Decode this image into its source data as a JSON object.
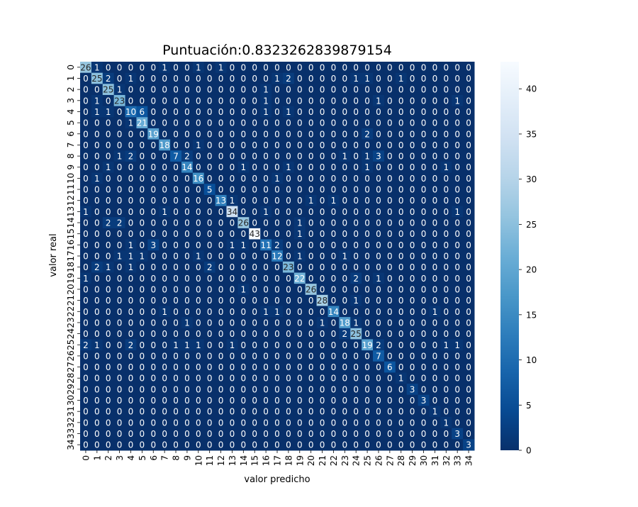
{
  "chart_data": {
    "type": "heatmap",
    "title": "Puntuación:0.8323262839879154",
    "xlabel": "valor predicho",
    "ylabel": "valor real",
    "labels": [
      "0",
      "1",
      "2",
      "3",
      "4",
      "5",
      "6",
      "7",
      "8",
      "9",
      "10",
      "11",
      "12",
      "13",
      "14",
      "15",
      "16",
      "17",
      "18",
      "19",
      "20",
      "21",
      "22",
      "23",
      "24",
      "25",
      "26",
      "27",
      "28",
      "29",
      "30",
      "31",
      "32",
      "33",
      "34"
    ],
    "matrix": [
      [
        26,
        1,
        0,
        0,
        0,
        0,
        0,
        1,
        0,
        0,
        1,
        0,
        1,
        0,
        0,
        0,
        0,
        0,
        0,
        0,
        0,
        0,
        0,
        0,
        0,
        0,
        0,
        0,
        0,
        0,
        0,
        0,
        0,
        0,
        0
      ],
      [
        0,
        25,
        2,
        0,
        1,
        0,
        0,
        0,
        0,
        0,
        0,
        0,
        0,
        0,
        0,
        0,
        0,
        1,
        2,
        0,
        0,
        0,
        0,
        0,
        1,
        1,
        0,
        0,
        1,
        0,
        0,
        0,
        0,
        0,
        0
      ],
      [
        0,
        0,
        25,
        1,
        0,
        0,
        0,
        0,
        0,
        0,
        0,
        0,
        0,
        0,
        0,
        0,
        1,
        0,
        0,
        0,
        0,
        0,
        0,
        0,
        0,
        0,
        0,
        0,
        0,
        0,
        0,
        0,
        0,
        0,
        0
      ],
      [
        0,
        1,
        0,
        23,
        0,
        0,
        0,
        0,
        0,
        0,
        0,
        0,
        0,
        0,
        0,
        0,
        1,
        0,
        0,
        0,
        0,
        0,
        0,
        0,
        0,
        0,
        1,
        0,
        0,
        0,
        0,
        0,
        0,
        1,
        0
      ],
      [
        0,
        1,
        1,
        0,
        10,
        6,
        0,
        0,
        0,
        0,
        0,
        0,
        0,
        0,
        0,
        0,
        1,
        0,
        1,
        0,
        0,
        0,
        0,
        0,
        0,
        0,
        0,
        0,
        0,
        0,
        0,
        0,
        0,
        0,
        0
      ],
      [
        0,
        0,
        0,
        0,
        1,
        21,
        0,
        0,
        0,
        0,
        0,
        0,
        0,
        0,
        0,
        0,
        0,
        0,
        0,
        0,
        0,
        0,
        0,
        0,
        0,
        0,
        0,
        0,
        0,
        0,
        0,
        0,
        0,
        0,
        0
      ],
      [
        0,
        0,
        0,
        0,
        0,
        0,
        19,
        0,
        0,
        0,
        0,
        0,
        0,
        0,
        0,
        0,
        0,
        0,
        0,
        0,
        0,
        0,
        0,
        0,
        0,
        2,
        0,
        0,
        0,
        0,
        0,
        0,
        0,
        0,
        0
      ],
      [
        0,
        0,
        0,
        0,
        0,
        0,
        0,
        18,
        0,
        0,
        1,
        0,
        0,
        0,
        0,
        0,
        0,
        0,
        0,
        0,
        0,
        0,
        0,
        0,
        0,
        0,
        0,
        0,
        0,
        0,
        0,
        0,
        0,
        0,
        0
      ],
      [
        0,
        0,
        0,
        1,
        2,
        0,
        0,
        0,
        7,
        2,
        0,
        0,
        0,
        0,
        0,
        0,
        0,
        0,
        0,
        0,
        0,
        0,
        0,
        1,
        0,
        1,
        3,
        0,
        0,
        0,
        0,
        0,
        0,
        0,
        0
      ],
      [
        0,
        0,
        1,
        0,
        0,
        0,
        0,
        0,
        0,
        14,
        0,
        0,
        0,
        0,
        1,
        0,
        0,
        0,
        1,
        0,
        0,
        0,
        0,
        0,
        0,
        1,
        0,
        0,
        0,
        0,
        0,
        0,
        1,
        0,
        0
      ],
      [
        0,
        1,
        0,
        0,
        0,
        0,
        0,
        0,
        0,
        0,
        16,
        0,
        0,
        0,
        0,
        0,
        0,
        1,
        0,
        0,
        0,
        0,
        0,
        0,
        0,
        0,
        0,
        0,
        0,
        0,
        0,
        0,
        0,
        0,
        0
      ],
      [
        0,
        0,
        0,
        0,
        0,
        0,
        0,
        0,
        0,
        0,
        0,
        5,
        0,
        0,
        0,
        0,
        0,
        0,
        0,
        0,
        0,
        0,
        0,
        0,
        0,
        0,
        0,
        0,
        0,
        0,
        0,
        0,
        0,
        0,
        0
      ],
      [
        0,
        0,
        0,
        0,
        0,
        0,
        0,
        0,
        0,
        0,
        0,
        0,
        13,
        1,
        0,
        0,
        0,
        0,
        0,
        0,
        1,
        0,
        1,
        0,
        0,
        0,
        0,
        0,
        0,
        0,
        0,
        0,
        0,
        0,
        0
      ],
      [
        1,
        0,
        0,
        0,
        0,
        0,
        0,
        1,
        0,
        0,
        0,
        0,
        0,
        34,
        0,
        0,
        1,
        0,
        0,
        0,
        0,
        0,
        0,
        0,
        0,
        0,
        0,
        0,
        0,
        0,
        0,
        0,
        0,
        1,
        0
      ],
      [
        0,
        0,
        2,
        2,
        0,
        0,
        0,
        0,
        0,
        0,
        0,
        0,
        0,
        0,
        26,
        0,
        0,
        0,
        0,
        1,
        0,
        0,
        0,
        0,
        0,
        0,
        0,
        0,
        0,
        0,
        0,
        0,
        0,
        0,
        0
      ],
      [
        0,
        0,
        0,
        0,
        0,
        0,
        0,
        0,
        0,
        0,
        0,
        0,
        0,
        0,
        0,
        43,
        0,
        0,
        0,
        1,
        0,
        0,
        0,
        0,
        0,
        0,
        0,
        0,
        0,
        0,
        0,
        0,
        0,
        0,
        0
      ],
      [
        0,
        0,
        0,
        0,
        1,
        0,
        3,
        0,
        0,
        0,
        0,
        0,
        0,
        1,
        1,
        0,
        11,
        2,
        0,
        0,
        0,
        0,
        0,
        0,
        0,
        0,
        0,
        0,
        0,
        0,
        0,
        0,
        0,
        0,
        0
      ],
      [
        0,
        0,
        0,
        1,
        1,
        1,
        0,
        0,
        0,
        0,
        1,
        0,
        0,
        0,
        0,
        0,
        0,
        12,
        0,
        1,
        0,
        0,
        0,
        1,
        0,
        0,
        0,
        0,
        0,
        0,
        0,
        0,
        0,
        0,
        0
      ],
      [
        0,
        2,
        1,
        0,
        1,
        0,
        0,
        0,
        0,
        0,
        0,
        2,
        0,
        0,
        0,
        0,
        0,
        0,
        23,
        0,
        0,
        0,
        0,
        0,
        0,
        0,
        0,
        0,
        0,
        0,
        0,
        0,
        0,
        0,
        0
      ],
      [
        1,
        0,
        0,
        0,
        0,
        0,
        0,
        0,
        0,
        0,
        0,
        0,
        0,
        0,
        0,
        0,
        0,
        0,
        0,
        22,
        0,
        0,
        0,
        0,
        2,
        0,
        1,
        0,
        0,
        0,
        0,
        0,
        0,
        0,
        0
      ],
      [
        0,
        0,
        0,
        0,
        0,
        0,
        0,
        0,
        0,
        0,
        0,
        0,
        0,
        0,
        1,
        0,
        0,
        0,
        0,
        0,
        26,
        0,
        0,
        0,
        0,
        0,
        0,
        0,
        0,
        0,
        0,
        0,
        0,
        0,
        0
      ],
      [
        0,
        0,
        0,
        0,
        0,
        0,
        0,
        0,
        0,
        0,
        0,
        0,
        0,
        0,
        0,
        0,
        0,
        0,
        0,
        0,
        0,
        28,
        0,
        0,
        1,
        0,
        0,
        0,
        0,
        0,
        0,
        0,
        0,
        0,
        0
      ],
      [
        0,
        0,
        0,
        0,
        0,
        0,
        0,
        1,
        0,
        0,
        0,
        0,
        0,
        0,
        0,
        0,
        1,
        1,
        0,
        0,
        0,
        0,
        14,
        0,
        0,
        0,
        0,
        0,
        0,
        0,
        0,
        1,
        0,
        0,
        0
      ],
      [
        0,
        0,
        0,
        0,
        0,
        0,
        0,
        0,
        0,
        1,
        0,
        0,
        0,
        0,
        0,
        0,
        0,
        0,
        0,
        0,
        0,
        1,
        0,
        18,
        1,
        0,
        0,
        0,
        0,
        0,
        0,
        0,
        0,
        0,
        0
      ],
      [
        0,
        0,
        0,
        0,
        0,
        0,
        0,
        0,
        0,
        0,
        0,
        0,
        0,
        0,
        0,
        0,
        0,
        0,
        0,
        0,
        0,
        0,
        0,
        2,
        25,
        0,
        0,
        0,
        0,
        0,
        0,
        0,
        0,
        0,
        0
      ],
      [
        2,
        1,
        0,
        0,
        2,
        0,
        0,
        0,
        1,
        1,
        1,
        0,
        0,
        1,
        0,
        0,
        0,
        0,
        0,
        0,
        0,
        0,
        0,
        0,
        0,
        19,
        2,
        0,
        0,
        0,
        0,
        0,
        1,
        1,
        0
      ],
      [
        0,
        0,
        0,
        0,
        0,
        0,
        0,
        0,
        0,
        0,
        0,
        0,
        0,
        0,
        0,
        0,
        0,
        0,
        0,
        0,
        0,
        0,
        0,
        0,
        0,
        0,
        7,
        0,
        0,
        0,
        0,
        0,
        0,
        0,
        0
      ],
      [
        0,
        0,
        0,
        0,
        0,
        0,
        0,
        0,
        0,
        0,
        0,
        0,
        0,
        0,
        0,
        0,
        0,
        0,
        0,
        0,
        0,
        0,
        0,
        0,
        0,
        0,
        0,
        6,
        0,
        0,
        0,
        0,
        0,
        0,
        0
      ],
      [
        0,
        0,
        0,
        0,
        0,
        0,
        0,
        0,
        0,
        0,
        0,
        0,
        0,
        0,
        0,
        0,
        0,
        0,
        0,
        0,
        0,
        0,
        0,
        0,
        0,
        0,
        0,
        0,
        1,
        0,
        0,
        0,
        0,
        0,
        0
      ],
      [
        0,
        0,
        0,
        0,
        0,
        0,
        0,
        0,
        0,
        0,
        0,
        0,
        0,
        0,
        0,
        0,
        0,
        0,
        0,
        0,
        0,
        0,
        0,
        0,
        0,
        0,
        0,
        0,
        0,
        3,
        0,
        0,
        0,
        0,
        0
      ],
      [
        0,
        0,
        0,
        0,
        0,
        0,
        0,
        0,
        0,
        0,
        0,
        0,
        0,
        0,
        0,
        0,
        0,
        0,
        0,
        0,
        0,
        0,
        0,
        0,
        0,
        0,
        0,
        0,
        0,
        0,
        3,
        0,
        0,
        0,
        0
      ],
      [
        0,
        0,
        0,
        0,
        0,
        0,
        0,
        0,
        0,
        0,
        0,
        0,
        0,
        0,
        0,
        0,
        0,
        0,
        0,
        0,
        0,
        0,
        0,
        0,
        0,
        0,
        0,
        0,
        0,
        0,
        0,
        1,
        0,
        0,
        0
      ],
      [
        0,
        0,
        0,
        0,
        0,
        0,
        0,
        0,
        0,
        0,
        0,
        0,
        0,
        0,
        0,
        0,
        0,
        0,
        0,
        0,
        0,
        0,
        0,
        0,
        0,
        0,
        0,
        0,
        0,
        0,
        0,
        0,
        1,
        0,
        0
      ],
      [
        0,
        0,
        0,
        0,
        0,
        0,
        0,
        0,
        0,
        0,
        0,
        0,
        0,
        0,
        0,
        0,
        0,
        0,
        0,
        0,
        0,
        0,
        0,
        0,
        0,
        0,
        0,
        0,
        0,
        0,
        0,
        0,
        0,
        3,
        0
      ],
      [
        0,
        0,
        0,
        0,
        0,
        0,
        0,
        0,
        0,
        0,
        0,
        0,
        0,
        0,
        0,
        0,
        0,
        0,
        0,
        0,
        0,
        0,
        0,
        0,
        0,
        0,
        0,
        0,
        0,
        0,
        0,
        0,
        0,
        0,
        3
      ]
    ],
    "colorbar": {
      "cmap": "Blues_r",
      "vmin": 0,
      "vmax": 43,
      "ticks": [
        "0",
        "5",
        "10",
        "15",
        "20",
        "25",
        "30",
        "35",
        "40"
      ]
    },
    "colors": {
      "low": "#08306b",
      "high": "#f7fbff"
    },
    "annotations": true
  }
}
